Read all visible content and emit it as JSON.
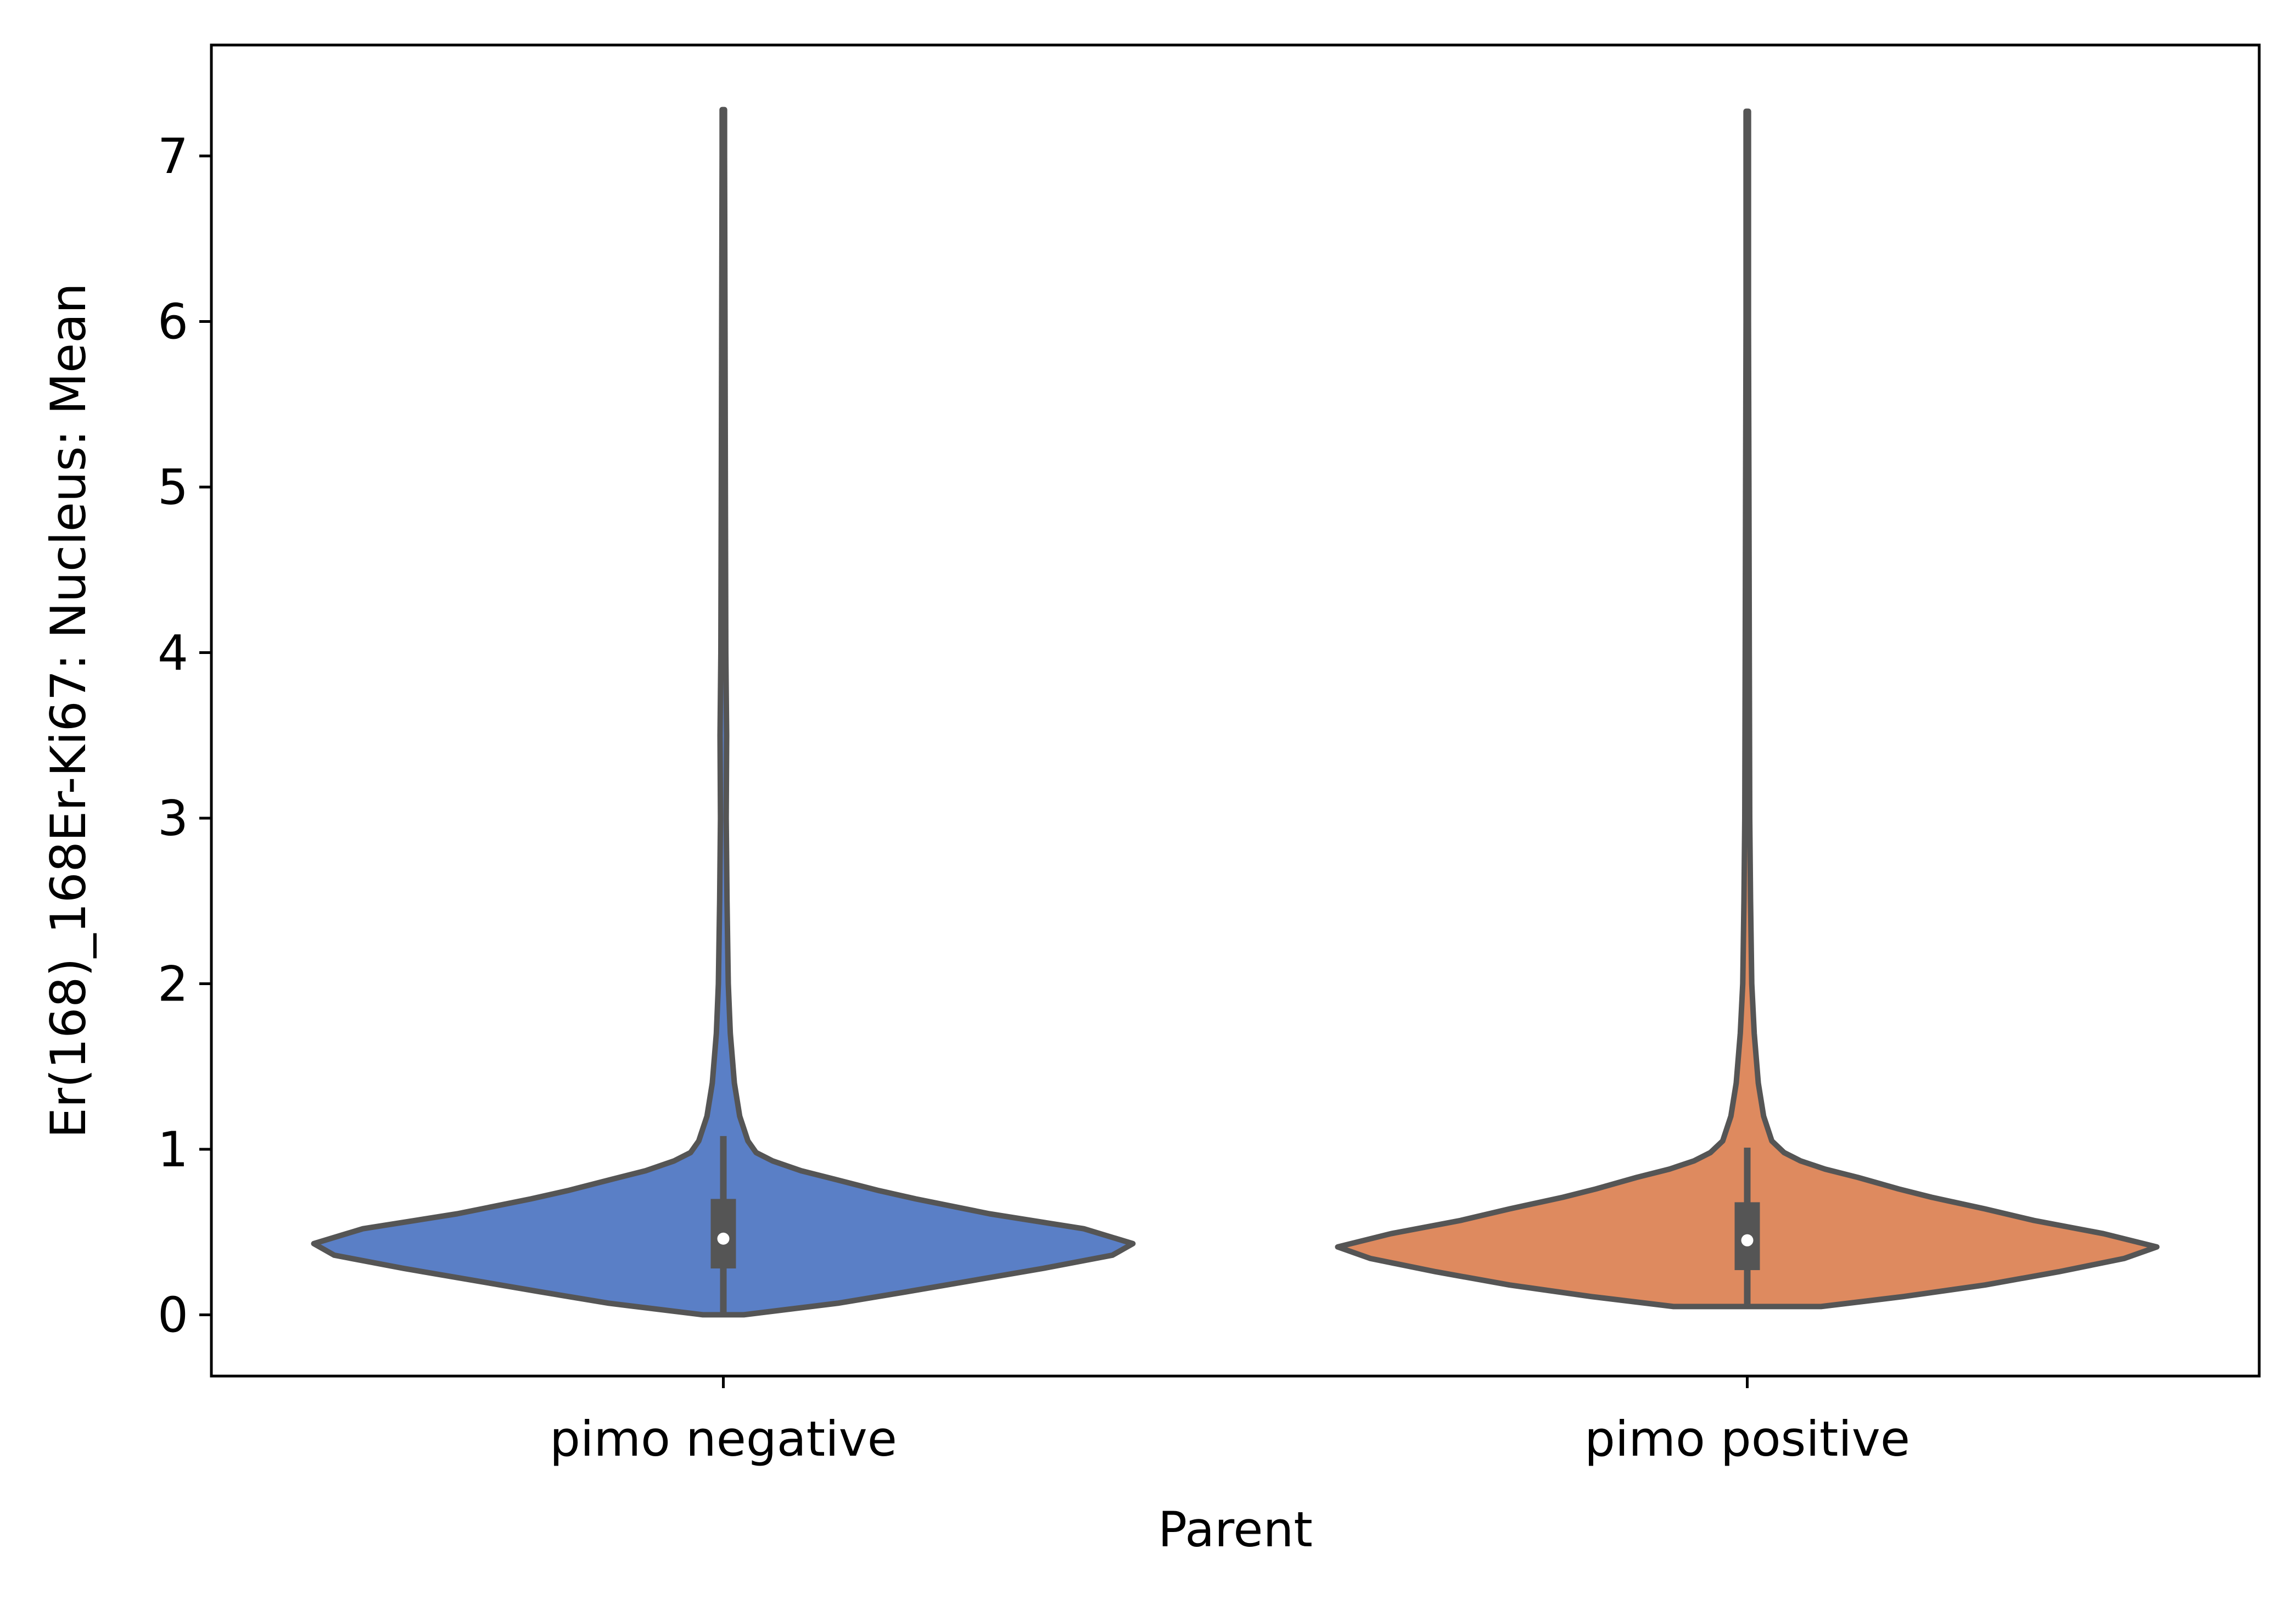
{
  "chart_data": {
    "type": "violin",
    "xlabel": "Parent",
    "ylabel": "Er(168)_168Er-Ki67: Nucleus: Mean",
    "ylim": [
      -0.37,
      7.67
    ],
    "yticks": [
      0,
      1,
      2,
      3,
      4,
      5,
      6,
      7
    ],
    "categories": [
      "pimo negative",
      "pimo positive"
    ],
    "grid": false,
    "legend": "none",
    "colors": {
      "pimo negative": "#5a7fc6",
      "pimo positive": "#de8a5f",
      "outline": "#555555",
      "median": "#ffffff"
    },
    "violins": [
      {
        "category": "pimo negative",
        "min": 0.0,
        "max": 7.28,
        "q1": 0.28,
        "median": 0.46,
        "q3": 0.7,
        "whisker_low": 0.0,
        "whisker_high": 1.08,
        "density_profile": [
          [
            0.0,
            0.05
          ],
          [
            0.07,
            0.28
          ],
          [
            0.14,
            0.45
          ],
          [
            0.28,
            0.78
          ],
          [
            0.36,
            0.95
          ],
          [
            0.43,
            1.0
          ],
          [
            0.52,
            0.88
          ],
          [
            0.61,
            0.65
          ],
          [
            0.7,
            0.47
          ],
          [
            0.75,
            0.38
          ],
          [
            0.82,
            0.27
          ],
          [
            0.87,
            0.19
          ],
          [
            0.93,
            0.12
          ],
          [
            0.98,
            0.08
          ],
          [
            1.05,
            0.06
          ],
          [
            1.2,
            0.04
          ],
          [
            1.4,
            0.027
          ],
          [
            1.7,
            0.017
          ],
          [
            2.0,
            0.012
          ],
          [
            2.5,
            0.009
          ],
          [
            3.0,
            0.007
          ],
          [
            3.5,
            0.008
          ],
          [
            4.0,
            0.006
          ],
          [
            5.0,
            0.005
          ],
          [
            6.0,
            0.004
          ],
          [
            7.0,
            0.003
          ],
          [
            7.28,
            0.003
          ]
        ]
      },
      {
        "category": "pimo positive",
        "min": 0.05,
        "max": 7.27,
        "q1": 0.27,
        "median": 0.45,
        "q3": 0.68,
        "whisker_low": 0.05,
        "whisker_high": 1.01,
        "density_profile": [
          [
            0.05,
            0.18
          ],
          [
            0.11,
            0.38
          ],
          [
            0.18,
            0.58
          ],
          [
            0.26,
            0.76
          ],
          [
            0.34,
            0.92
          ],
          [
            0.41,
            1.0
          ],
          [
            0.49,
            0.87
          ],
          [
            0.57,
            0.7
          ],
          [
            0.64,
            0.58
          ],
          [
            0.71,
            0.45
          ],
          [
            0.76,
            0.37
          ],
          [
            0.83,
            0.27
          ],
          [
            0.88,
            0.19
          ],
          [
            0.93,
            0.13
          ],
          [
            0.98,
            0.09
          ],
          [
            1.05,
            0.06
          ],
          [
            1.2,
            0.04
          ],
          [
            1.4,
            0.027
          ],
          [
            1.7,
            0.017
          ],
          [
            2.0,
            0.011
          ],
          [
            2.5,
            0.008
          ],
          [
            3.0,
            0.006
          ],
          [
            4.0,
            0.005
          ],
          [
            5.0,
            0.004
          ],
          [
            6.0,
            0.003
          ],
          [
            7.0,
            0.003
          ],
          [
            7.27,
            0.003
          ]
        ]
      }
    ]
  }
}
